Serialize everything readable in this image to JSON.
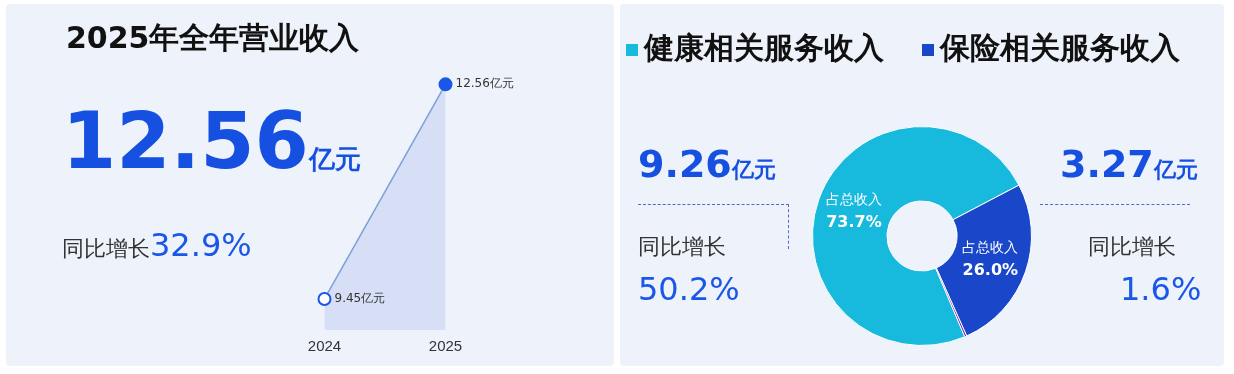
{
  "chart_data": [
    {
      "type": "line",
      "title": "2025年全年营业收入",
      "categories": [
        "2024",
        "2025"
      ],
      "series": [
        {
          "color": "#1a56e8",
          "values": [
            9.45,
            12.56
          ],
          "value_labels": [
            "9.45亿元",
            "12.56亿元"
          ]
        }
      ],
      "marker": "circle",
      "legend": false,
      "grid": false,
      "tick_labels": "x",
      "annotations": [
        "12.56亿元",
        "同比增长32.9%"
      ]
    },
    {
      "type": "donut",
      "categories": [
        "健康相关服务收入",
        "保险相关服务收入",
        null
      ],
      "values": [
        73.7,
        26.0,
        0.3
      ],
      "colors": [
        "#17b9dc",
        "#1a46c9",
        "#6b1fc2"
      ],
      "value_labels": [
        "占总收入\n73.7%",
        "占总收入\n26.0%",
        null
      ],
      "legend": "top",
      "annotations": [
        "9.26亿元",
        "同比增长",
        "50.2%",
        "3.27亿元",
        "同比增长",
        "1.6%"
      ]
    }
  ]
}
